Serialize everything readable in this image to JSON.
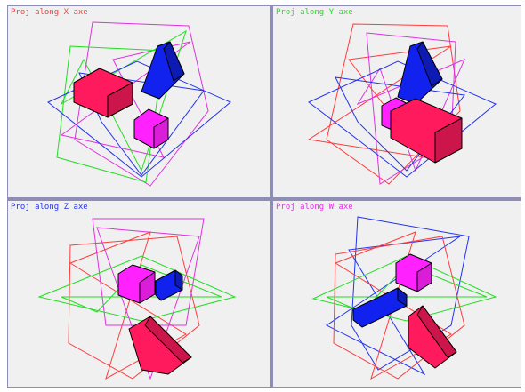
{
  "colors": {
    "x_axis": "#ff3b3b",
    "y_axis": "#22dd22",
    "z_axis": "#2233ee",
    "w_axis": "#dd33dd",
    "box": "#ff1a5e",
    "prism": "#1122ee",
    "cube": "#ff22ff",
    "background": "#f0f0f0",
    "divider": "#8d8db5"
  },
  "views": [
    {
      "label": "Proj along X axe",
      "label_color": "#ff3b3b"
    },
    {
      "label": "Proj along Y axe",
      "label_color": "#22dd22"
    },
    {
      "label": "Proj along Z axe",
      "label_color": "#2233ee"
    },
    {
      "label": "Proj along W axe",
      "label_color": "#dd33dd"
    }
  ]
}
